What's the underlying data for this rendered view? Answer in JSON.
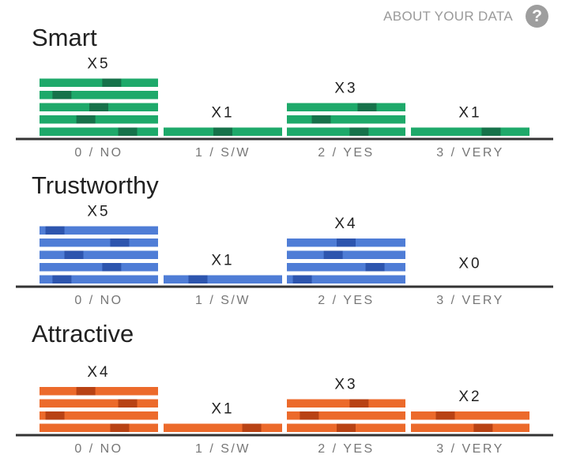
{
  "header": {
    "about_label": "ABOUT YOUR DATA",
    "help_icon": "question-mark-icon"
  },
  "chart_data": [
    {
      "type": "bar",
      "title": "Smart",
      "color": "#1ea96a",
      "highlight_color": "#16724a",
      "categories": [
        "0 / NO",
        "1 / S/W",
        "2 / YES",
        "3 / VERY"
      ],
      "values": [
        5,
        1,
        3,
        1
      ],
      "count_labels": [
        "X5",
        "X1",
        "X3",
        "X1"
      ]
    },
    {
      "type": "bar",
      "title": "Trustworthy",
      "color": "#4f7dd6",
      "highlight_color": "#2d55ae",
      "categories": [
        "0 / NO",
        "1 / S/W",
        "2 / YES",
        "3 / VERY"
      ],
      "values": [
        5,
        1,
        4,
        0
      ],
      "count_labels": [
        "X5",
        "X1",
        "X4",
        "X0"
      ]
    },
    {
      "type": "bar",
      "title": "Attractive",
      "color": "#ec6a2b",
      "highlight_color": "#b84214",
      "categories": [
        "0 / NO",
        "1 / S/W",
        "2 / YES",
        "3 / VERY"
      ],
      "values": [
        4,
        1,
        3,
        2
      ],
      "count_labels": [
        "X4",
        "X1",
        "X3",
        "X2"
      ]
    }
  ]
}
